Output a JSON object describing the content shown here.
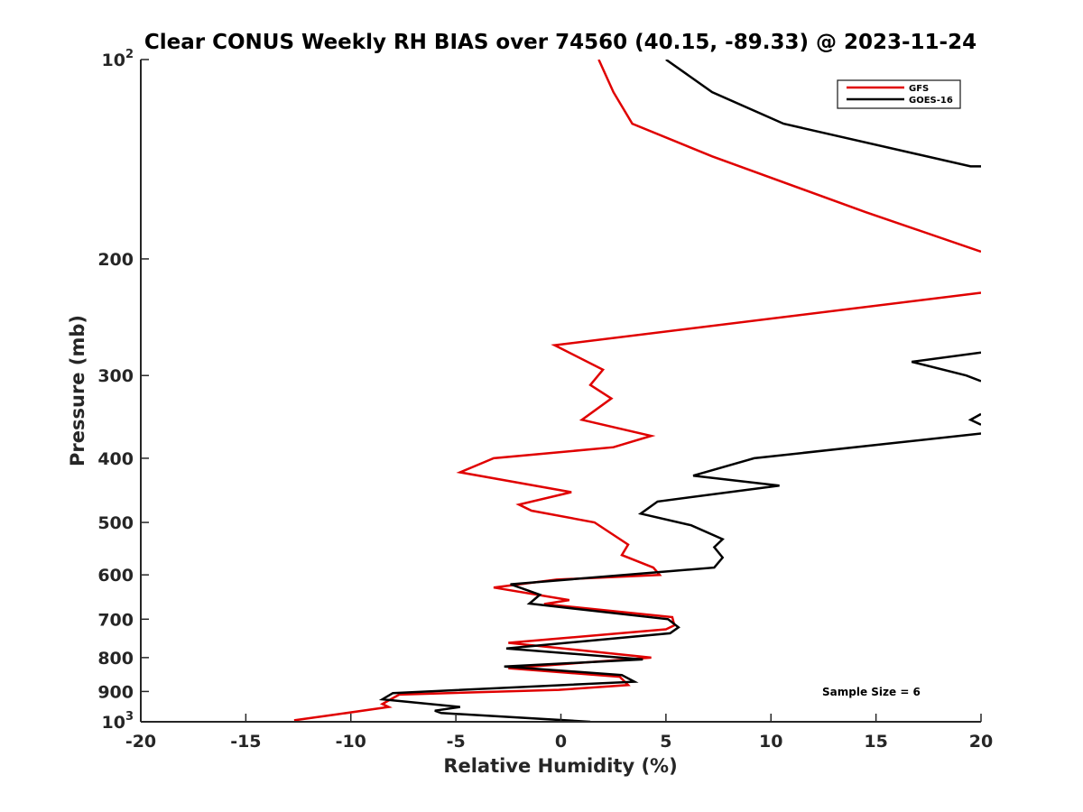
{
  "chart_data": {
    "type": "line",
    "title": "Clear CONUS Weekly RH BIAS over 74560 (40.15, -89.33) @ 2023-11-24",
    "xlabel": "Relative Humidity (%)",
    "ylabel": "Pressure (mb)",
    "xlim": [
      -20,
      20
    ],
    "ylim": [
      100,
      1000
    ],
    "y_scale": "log",
    "y_reversed": true,
    "grid": false,
    "legend_position": "top-right",
    "x_ticks": [
      "-20",
      "-15",
      "-10",
      "-5",
      "0",
      "5",
      "10",
      "15",
      "20"
    ],
    "y_ticks": [
      {
        "value": 100,
        "base": "10",
        "exp": "2"
      },
      {
        "value": 200,
        "label": "200"
      },
      {
        "value": 300,
        "label": "300"
      },
      {
        "value": 400,
        "label": "400"
      },
      {
        "value": 500,
        "label": "500"
      },
      {
        "value": 600,
        "label": "600"
      },
      {
        "value": 700,
        "label": "700"
      },
      {
        "value": 800,
        "label": "800"
      },
      {
        "value": 900,
        "label": "900"
      },
      {
        "value": 1000,
        "base": "10",
        "exp": "3"
      }
    ],
    "annotation": "Sample Size = 6",
    "series": [
      {
        "name": "GFS",
        "color": "#e00000",
        "points": [
          [
            1.8,
            100
          ],
          [
            2.5,
            112
          ],
          [
            3.4,
            125
          ],
          [
            7.2,
            140
          ],
          [
            14.5,
            170
          ],
          [
            20.0,
            195
          ],
          [
            null,
            null
          ],
          [
            20.0,
            225
          ],
          [
            -0.3,
            270
          ],
          [
            2.0,
            294
          ],
          [
            1.4,
            310
          ],
          [
            2.4,
            325
          ],
          [
            1.0,
            350
          ],
          [
            4.3,
            370
          ],
          [
            2.5,
            385
          ],
          [
            -3.2,
            400
          ],
          [
            -4.8,
            420
          ],
          [
            0.5,
            450
          ],
          [
            -2.0,
            470
          ],
          [
            -1.4,
            480
          ],
          [
            1.6,
            500
          ],
          [
            3.2,
            540
          ],
          [
            2.9,
            560
          ],
          [
            4.4,
            585
          ],
          [
            4.7,
            600
          ],
          [
            -0.2,
            610
          ],
          [
            -3.2,
            627
          ],
          [
            0.4,
            655
          ],
          [
            -0.8,
            664
          ],
          [
            5.3,
            695
          ],
          [
            5.4,
            715
          ],
          [
            5.0,
            725
          ],
          [
            -2.5,
            760
          ],
          [
            4.3,
            800
          ],
          [
            -2.5,
            830
          ],
          [
            2.8,
            855
          ],
          [
            3.2,
            880
          ],
          [
            -0.1,
            895
          ],
          [
            -7.7,
            910
          ],
          [
            -8.5,
            940
          ],
          [
            -8.2,
            950
          ],
          [
            -10.7,
            975
          ],
          [
            -12.7,
            995
          ]
        ]
      },
      {
        "name": "GOES-16",
        "color": "#000000",
        "points": [
          [
            5.0,
            100
          ],
          [
            7.2,
            112
          ],
          [
            10.6,
            125
          ],
          [
            19.5,
            145
          ],
          [
            20.0,
            145
          ],
          [
            null,
            null
          ],
          [
            20.0,
            277
          ],
          [
            16.7,
            286
          ],
          [
            19.3,
            300
          ],
          [
            20.0,
            306
          ],
          [
            null,
            null
          ],
          [
            20.0,
            343
          ],
          [
            19.5,
            350
          ],
          [
            20.0,
            356
          ],
          [
            null,
            null
          ],
          [
            20.0,
            367
          ],
          [
            15.6,
            380
          ],
          [
            9.2,
            400
          ],
          [
            6.3,
            425
          ],
          [
            10.4,
            440
          ],
          [
            4.6,
            465
          ],
          [
            3.8,
            485
          ],
          [
            6.2,
            505
          ],
          [
            7.7,
            530
          ],
          [
            7.3,
            545
          ],
          [
            7.7,
            565
          ],
          [
            7.3,
            585
          ],
          [
            -2.4,
            620
          ],
          [
            -1.0,
            643
          ],
          [
            -1.5,
            663
          ],
          [
            5.1,
            700
          ],
          [
            5.6,
            720
          ],
          [
            5.2,
            735
          ],
          [
            -2.6,
            775
          ],
          [
            3.9,
            805
          ],
          [
            -2.7,
            825
          ],
          [
            2.9,
            850
          ],
          [
            3.5,
            870
          ],
          [
            -8.0,
            905
          ],
          [
            -8.5,
            925
          ],
          [
            -4.8,
            950
          ],
          [
            -6.0,
            962
          ],
          [
            -5.7,
            970
          ],
          [
            1.4,
            1000
          ]
        ]
      }
    ]
  }
}
